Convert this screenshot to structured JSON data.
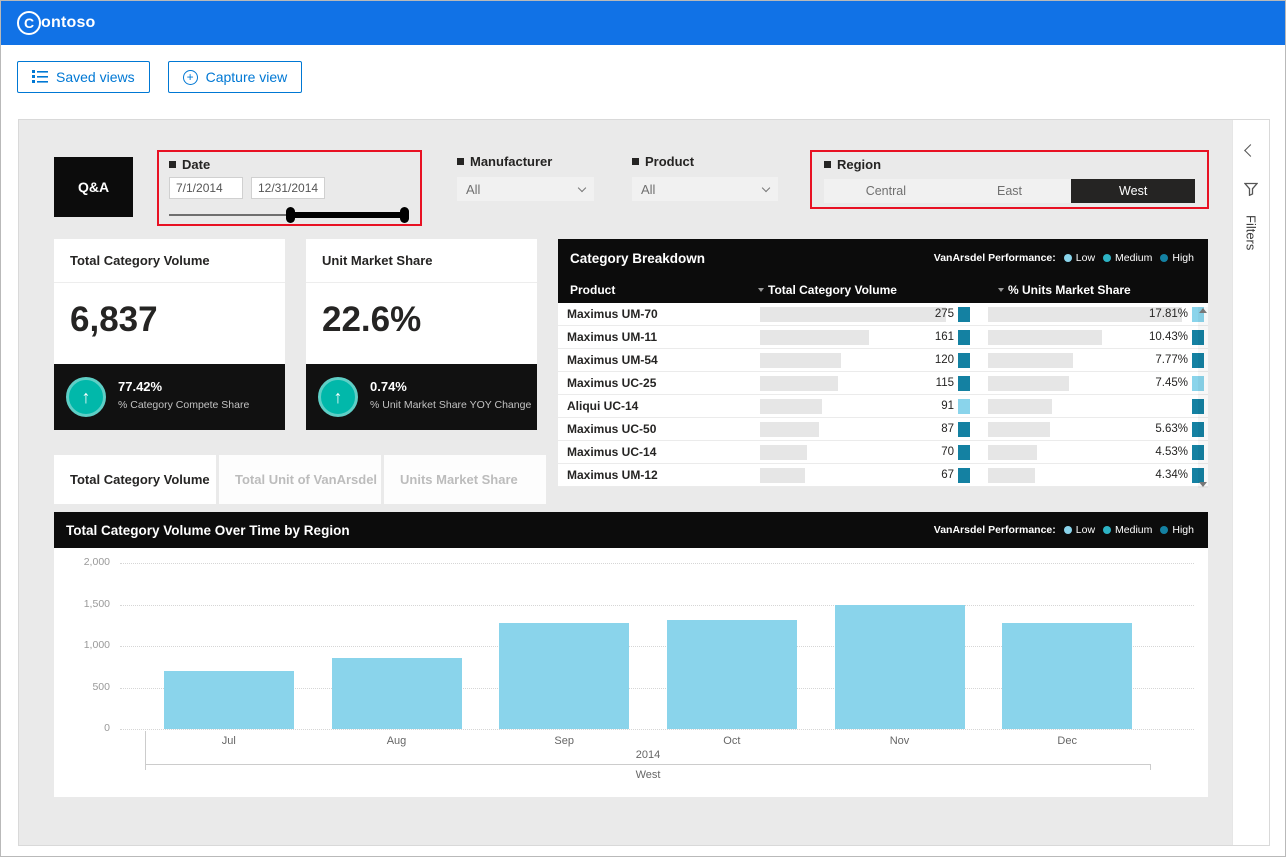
{
  "header": {
    "brand": "Contoso",
    "logo_initial": "C",
    "logo_rest": "ontoso"
  },
  "toolbar": {
    "saved_views_label": "Saved views",
    "capture_view_label": "Capture view"
  },
  "qna": {
    "label": "Q&A"
  },
  "slicers": {
    "date": {
      "title": "Date",
      "start_value": "7/1/2014",
      "end_value": "12/31/2014"
    },
    "manufacturer": {
      "title": "Manufacturer",
      "value": "All"
    },
    "product": {
      "title": "Product",
      "value": "All"
    },
    "region": {
      "title": "Region",
      "options": [
        {
          "label": "Central",
          "selected": false
        },
        {
          "label": "East",
          "selected": false
        },
        {
          "label": "West",
          "selected": true
        }
      ]
    }
  },
  "kpis": [
    {
      "title": "Total Category Volume",
      "value": "6,837",
      "delta": "77.42%",
      "delta_label": "% Category Compete Share"
    },
    {
      "title": "Unit Market Share",
      "value": "22.6%",
      "delta": "0.74%",
      "delta_label": "% Unit Market Share YOY Change"
    }
  ],
  "legend": {
    "title": "VanArsdel Performance:",
    "items": [
      {
        "label": "Low",
        "color": "#8ad4eb"
      },
      {
        "label": "Medium",
        "color": "#2db3c4"
      },
      {
        "label": "High",
        "color": "#1481a2"
      }
    ]
  },
  "breakdown": {
    "title": "Category Breakdown",
    "columns": {
      "product": "Product",
      "volume": "Total Category Volume",
      "share": "% Units Market Share"
    },
    "rows": [
      {
        "product": "Maximus UM-70",
        "volume": 275,
        "volume_color": "high",
        "share": "17.81%",
        "share_ratio": 1.0,
        "share_color": "low"
      },
      {
        "product": "Maximus UM-11",
        "volume": 161,
        "volume_color": "high",
        "share": "10.43%",
        "share_ratio": 0.59,
        "share_color": "high"
      },
      {
        "product": "Maximus UM-54",
        "volume": 120,
        "volume_color": "high",
        "share": "7.77%",
        "share_ratio": 0.44,
        "share_color": "high"
      },
      {
        "product": "Maximus UC-25",
        "volume": 115,
        "volume_color": "high",
        "share": "7.45%",
        "share_ratio": 0.42,
        "share_color": "low"
      },
      {
        "product": "Aliqui UC-14",
        "volume": 91,
        "volume_color": "low",
        "share": "",
        "share_ratio": 0.33,
        "share_color": "high"
      },
      {
        "product": "Maximus UC-50",
        "volume": 87,
        "volume_color": "high",
        "share": "5.63%",
        "share_ratio": 0.32,
        "share_color": "high"
      },
      {
        "product": "Maximus UC-14",
        "volume": 70,
        "volume_color": "high",
        "share": "4.53%",
        "share_ratio": 0.25,
        "share_color": "high"
      },
      {
        "product": "Maximus UM-12",
        "volume": 67,
        "volume_color": "high",
        "share": "4.34%",
        "share_ratio": 0.24,
        "share_color": "high"
      }
    ]
  },
  "tabs": [
    {
      "label": "Total Category Volume",
      "active": true
    },
    {
      "label": "Total Unit of VanArsdel",
      "active": false
    },
    {
      "label": "Units Market Share",
      "active": false
    }
  ],
  "chart_data": {
    "type": "bar",
    "title": "Total Category Volume Over Time by Region",
    "categories": [
      "Jul",
      "Aug",
      "Sep",
      "Oct",
      "Nov",
      "Dec"
    ],
    "values": [
      700,
      850,
      1280,
      1310,
      1500,
      1280
    ],
    "x_year": "2014",
    "x_region": "West",
    "ylim": [
      0,
      2000
    ],
    "yticks": [
      0,
      500,
      1000,
      1500,
      2000
    ],
    "bar_color": "#8ad4eb",
    "grid": "dotted-horizontal",
    "legend_position": "header-right"
  },
  "filters_pane": {
    "label": "Filters"
  },
  "colors": {
    "topbar_blue": "#1172e6",
    "accent_blue": "#0078d4",
    "highlight_red": "#e81123",
    "kpi_teal": "#01b8aa",
    "performance": {
      "low": "#8ad4eb",
      "medium": "#2db3c4",
      "high": "#1481a2"
    }
  }
}
